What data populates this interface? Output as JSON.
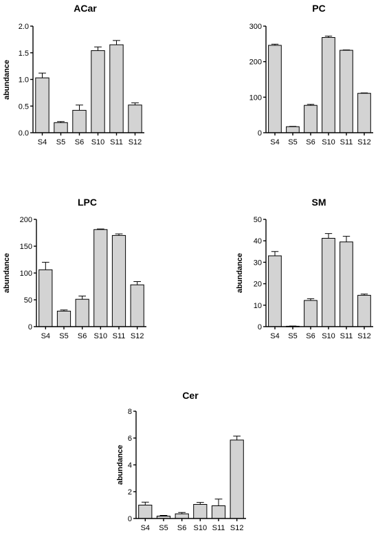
{
  "chart_data": [
    {
      "type": "bar",
      "title": "ACar",
      "ylabel": "abundance",
      "categories": [
        "S4",
        "S5",
        "S6",
        "S10",
        "S11",
        "S12"
      ],
      "values": [
        1.03,
        0.19,
        0.42,
        1.54,
        1.65,
        0.52
      ],
      "errors": [
        0.09,
        0.02,
        0.1,
        0.07,
        0.08,
        0.04
      ],
      "ylim": [
        0,
        2.0
      ],
      "yticks": [
        "0.0",
        "0.5",
        "1.0",
        "1.5",
        "2.0"
      ],
      "grid": false,
      "legend": false
    },
    {
      "type": "bar",
      "title": "PC",
      "ylabel": "",
      "categories": [
        "S4",
        "S5",
        "S6",
        "S10",
        "S11",
        "S12"
      ],
      "values": [
        246,
        17,
        77,
        268,
        232,
        111
      ],
      "errors": [
        3,
        1,
        3,
        4,
        1,
        1
      ],
      "ylim": [
        0,
        300
      ],
      "yticks": [
        "0",
        "100",
        "200",
        "300"
      ],
      "grid": false,
      "legend": false
    },
    {
      "type": "bar",
      "title": "LPC",
      "ylabel": "abundance",
      "categories": [
        "S4",
        "S5",
        "S6",
        "S10",
        "S11",
        "S12"
      ],
      "values": [
        106,
        29,
        51,
        181,
        170,
        78
      ],
      "errors": [
        14,
        2,
        6,
        1,
        3,
        6
      ],
      "ylim": [
        0,
        200
      ],
      "yticks": [
        "0",
        "50",
        "100",
        "150",
        "200"
      ],
      "grid": false,
      "legend": false
    },
    {
      "type": "bar",
      "title": "SM",
      "ylabel": "abundance",
      "categories": [
        "S4",
        "S5",
        "S6",
        "S10",
        "S11",
        "S12"
      ],
      "values": [
        33,
        0.2,
        12.2,
        41.2,
        39.5,
        14.6
      ],
      "errors": [
        2,
        0.1,
        0.8,
        2.2,
        2.6,
        0.6
      ],
      "ylim": [
        0,
        50
      ],
      "yticks": [
        "0",
        "10",
        "20",
        "30",
        "40",
        "50"
      ],
      "grid": false,
      "legend": false
    },
    {
      "type": "bar",
      "title": "Cer",
      "ylabel": "abundance",
      "categories": [
        "S4",
        "S5",
        "S6",
        "S10",
        "S11",
        "S12"
      ],
      "values": [
        1.0,
        0.18,
        0.35,
        1.05,
        0.95,
        5.85
      ],
      "errors": [
        0.22,
        0.05,
        0.1,
        0.15,
        0.5,
        0.3
      ],
      "ylim": [
        0,
        8
      ],
      "yticks": [
        "0",
        "2",
        "4",
        "6",
        "8"
      ],
      "grid": false,
      "legend": false
    }
  ]
}
